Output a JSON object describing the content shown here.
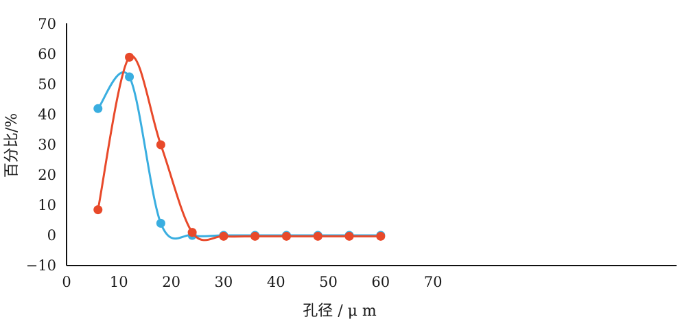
{
  "chart_data": {
    "type": "line",
    "title": "",
    "xlabel": "孔径 / μ m",
    "ylabel": "百分比/%",
    "xlim": [
      0,
      70
    ],
    "ylim": [
      -10,
      70
    ],
    "x_ticks": [
      0,
      10,
      20,
      30,
      40,
      50,
      60,
      70
    ],
    "y_ticks": [
      -10,
      0,
      10,
      20,
      30,
      40,
      50,
      60,
      70
    ],
    "x_tick_labels": [
      "0",
      "10",
      "20",
      "30",
      "40",
      "50",
      "60",
      "70"
    ],
    "y_tick_labels": [
      "−10",
      "0",
      "10",
      "20",
      "30",
      "40",
      "50",
      "60",
      "70"
    ],
    "grid": false,
    "legend": "none",
    "smooth": true,
    "series": [
      {
        "color": "#3aaee0",
        "x": [
          6,
          12,
          18,
          24,
          30,
          36,
          42,
          48,
          54,
          60
        ],
        "y": [
          42,
          52.5,
          4,
          0,
          0,
          0,
          0,
          0,
          0,
          0
        ]
      },
      {
        "color": "#e8492a",
        "x": [
          6,
          12,
          18,
          24,
          30,
          36,
          42,
          48,
          54,
          60
        ],
        "y": [
          8.5,
          59,
          30,
          1,
          -0.3,
          -0.3,
          -0.3,
          -0.3,
          -0.3,
          -0.3
        ]
      }
    ]
  }
}
